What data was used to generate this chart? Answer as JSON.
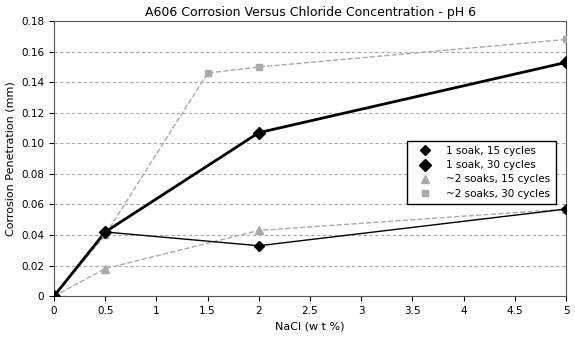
{
  "title": "A606 Corrosion Versus Chloride Concentration - pH 6",
  "xlabel": "NaCl (w t %)",
  "ylabel": "Corrosion Penetration (mm)",
  "xlim": [
    0,
    5
  ],
  "ylim": [
    0,
    0.18
  ],
  "xticks": [
    0,
    0.5,
    1,
    1.5,
    2,
    2.5,
    3,
    3.5,
    4,
    4.5,
    5
  ],
  "yticks": [
    0,
    0.02,
    0.04,
    0.06,
    0.08,
    0.1,
    0.12,
    0.14,
    0.16,
    0.18
  ],
  "series": [
    {
      "label": "1 soak, 15 cycles",
      "x": [
        0,
        0.5,
        2,
        5
      ],
      "y": [
        0,
        0.042,
        0.033,
        0.057
      ],
      "color": "#000000",
      "linewidth": 1.0,
      "linestyle": "-",
      "marker": "D",
      "markersize": 5,
      "smooth": false,
      "zorder": 3
    },
    {
      "label": "1 soak, 30 cycles",
      "x": [
        0,
        0.5,
        2,
        5
      ],
      "y": [
        0,
        0.042,
        0.107,
        0.153
      ],
      "color": "#000000",
      "linewidth": 2.0,
      "linestyle": "-",
      "marker": "D",
      "markersize": 6,
      "smooth": true,
      "zorder": 3
    },
    {
      "label": "~2 soaks, 15 cycles",
      "x": [
        0,
        0.5,
        2,
        5
      ],
      "y": [
        0,
        0.018,
        0.043,
        0.057
      ],
      "color": "#aaaaaa",
      "linewidth": 1.0,
      "linestyle": "--",
      "marker": "^",
      "markersize": 6,
      "smooth": false,
      "zorder": 2
    },
    {
      "label": "~2 soaks, 30 cycles",
      "x": [
        0,
        0.5,
        1.5,
        2,
        5
      ],
      "y": [
        0,
        0.04,
        0.146,
        0.15,
        0.168
      ],
      "color": "#aaaaaa",
      "linewidth": 1.0,
      "linestyle": "--",
      "marker": "s",
      "markersize": 5,
      "smooth": true,
      "zorder": 2
    }
  ],
  "background_color": "#ffffff",
  "title_fontsize": 9,
  "label_fontsize": 8,
  "tick_fontsize": 7.5,
  "legend_fontsize": 7.5
}
